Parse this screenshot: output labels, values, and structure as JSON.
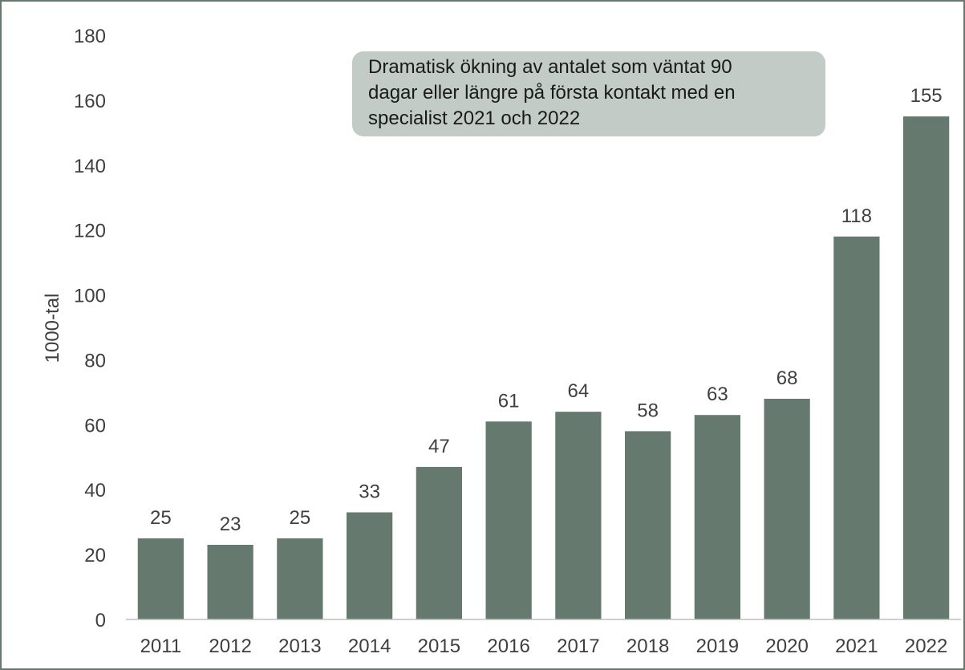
{
  "chart_data": {
    "type": "bar",
    "categories": [
      "2011",
      "2012",
      "2013",
      "2014",
      "2015",
      "2016",
      "2017",
      "2018",
      "2019",
      "2020",
      "2021",
      "2022"
    ],
    "values": [
      25,
      23,
      25,
      33,
      47,
      61,
      64,
      58,
      63,
      68,
      118,
      155
    ],
    "data_labels": [
      "25",
      "23",
      "25",
      "33",
      "47",
      "61",
      "64",
      "58",
      "63",
      "68",
      "118",
      "155"
    ],
    "title": "",
    "xlabel": "",
    "ylabel": "1000-tal",
    "ylim": [
      0,
      180
    ],
    "yticks": [
      0,
      20,
      40,
      60,
      80,
      100,
      120,
      140,
      160,
      180
    ],
    "grid": false,
    "legend": "none",
    "bar_color": "#65796e",
    "annotation": {
      "lines": [
        "Dramatisk ökning av antalet som väntat 90",
        "dagar eller längre på första kontakt med en",
        "specialist 2021 och 2022"
      ],
      "background": "#c2cbc5"
    }
  }
}
